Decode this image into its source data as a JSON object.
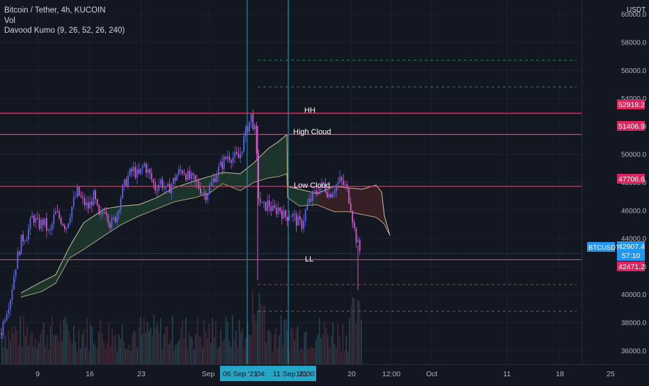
{
  "colors": {
    "background": "#131722",
    "grid": "#1e222d",
    "text": "#d1d4dc",
    "up": "#5b66e8",
    "down": "#d55ac8",
    "level": "#f23a6a",
    "cursor": "#26a6c8",
    "last_price": "#2196f3",
    "dashed_green": "#2e7d5b",
    "dashed_red": "#b03a4a",
    "cloud_green": "#1e3a2e",
    "cloud_red": "#3a1e26",
    "span_a": "#c8c59a",
    "span_b": "#b3a07d"
  },
  "legend": {
    "symbol": "Bitcoin / Tether, 4h, KUCOIN",
    "vol": "Vol",
    "indicator": "Davood Kumo (9, 26, 52, 26, 240)"
  },
  "price_axis": {
    "currency": "USDT",
    "ticks": [
      "60000.0",
      "58000.0",
      "56000.0",
      "54000.0",
      "52000.0",
      "50000.0",
      "48000.0",
      "46000.0",
      "44000.0",
      "42000.0",
      "40000.0",
      "38000.0",
      "36000.0"
    ]
  },
  "time_axis": {
    "ticks": [
      "9",
      "16",
      "23",
      "Sep",
      "20",
      "12:00",
      "Oct",
      "11",
      "18",
      "25"
    ],
    "cursor_label_1": "06 Sep '21",
    "cursor_label_2": "04:",
    "cursor_label_3": "11 Sep '21",
    "cursor_label_4": "16:00"
  },
  "price_labels": {
    "hh_level": "52918.2",
    "high_cloud_level": "51406.9",
    "low_cloud_level": "47706.6",
    "last_price": "42907.4",
    "countdown": "57:10",
    "ll_level": "42471.2",
    "symbol_tag": "BTCUSDT"
  },
  "annotations": {
    "hh": "HH",
    "high_cloud": "High Cloud",
    "low_cloud": "Low Cloud",
    "ll": "LL"
  },
  "chart_data": {
    "type": "candlestick",
    "symbol": "BTCUSDT",
    "exchange": "KUCOIN",
    "interval": "4h",
    "ylim": [
      35000,
      61000
    ],
    "horizontal_levels": [
      52918.2,
      51406.9,
      47706.6,
      42471.2
    ],
    "dashed_levels": [
      56700,
      54800,
      40700,
      38800
    ],
    "last_price": 42907.4,
    "close_path": [
      [
        0,
        37200
      ],
      [
        6,
        38500
      ],
      [
        14,
        39800
      ],
      [
        22,
        42200
      ],
      [
        30,
        43900
      ],
      [
        38,
        44300
      ],
      [
        46,
        45600
      ],
      [
        54,
        44900
      ],
      [
        62,
        45200
      ],
      [
        70,
        44200
      ],
      [
        78,
        45800
      ],
      [
        86,
        45400
      ],
      [
        94,
        44800
      ],
      [
        102,
        46200
      ],
      [
        110,
        47300
      ],
      [
        118,
        46600
      ],
      [
        126,
        46200
      ],
      [
        134,
        47000
      ],
      [
        142,
        45300
      ],
      [
        150,
        46300
      ],
      [
        158,
        44900
      ],
      [
        166,
        45600
      ],
      [
        174,
        47300
      ],
      [
        182,
        48300
      ],
      [
        190,
        48900
      ],
      [
        198,
        48400
      ],
      [
        206,
        49300
      ],
      [
        214,
        48500
      ],
      [
        222,
        47600
      ],
      [
        230,
        48100
      ],
      [
        238,
        47300
      ],
      [
        246,
        47900
      ],
      [
        254,
        48600
      ],
      [
        262,
        48900
      ],
      [
        270,
        48300
      ],
      [
        278,
        48100
      ],
      [
        286,
        47600
      ],
      [
        294,
        47100
      ],
      [
        302,
        47800
      ],
      [
        310,
        48700
      ],
      [
        318,
        49300
      ],
      [
        326,
        49900
      ],
      [
        334,
        49800
      ],
      [
        342,
        49700
      ],
      [
        348,
        50800
      ],
      [
        354,
        51900
      ],
      [
        360,
        52700
      ],
      [
        366,
        51400
      ],
      [
        370,
        47100
      ],
      [
        376,
        46100
      ],
      [
        384,
        46500
      ],
      [
        392,
        45900
      ],
      [
        400,
        46200
      ],
      [
        408,
        45500
      ],
      [
        416,
        45800
      ],
      [
        424,
        45300
      ],
      [
        432,
        44900
      ],
      [
        440,
        46300
      ],
      [
        448,
        47000
      ],
      [
        456,
        47500
      ],
      [
        464,
        47800
      ],
      [
        472,
        47100
      ],
      [
        480,
        47700
      ],
      [
        488,
        48100
      ],
      [
        496,
        47600
      ],
      [
        502,
        46600
      ],
      [
        508,
        44600
      ],
      [
        514,
        43300
      ],
      [
        518,
        42900
      ]
    ],
    "kumo_span_a": [
      [
        30,
        40100
      ],
      [
        60,
        40900
      ],
      [
        80,
        41400
      ],
      [
        100,
        43400
      ],
      [
        120,
        45100
      ],
      [
        150,
        46100
      ],
      [
        175,
        46300
      ],
      [
        200,
        46400
      ],
      [
        225,
        46900
      ],
      [
        250,
        47600
      ],
      [
        280,
        48100
      ],
      [
        300,
        48400
      ],
      [
        320,
        48700
      ],
      [
        345,
        48600
      ],
      [
        365,
        49400
      ],
      [
        385,
        50400
      ],
      [
        400,
        50900
      ],
      [
        412,
        51400
      ],
      [
        413,
        47700
      ],
      [
        430,
        47500
      ],
      [
        455,
        47200
      ],
      [
        480,
        47700
      ],
      [
        500,
        47600
      ],
      [
        520,
        47500
      ],
      [
        540,
        47800
      ],
      [
        548,
        47300
      ],
      [
        552,
        45600
      ],
      [
        560,
        44200
      ]
    ],
    "kumo_span_b": [
      [
        30,
        39800
      ],
      [
        60,
        40200
      ],
      [
        80,
        40800
      ],
      [
        100,
        42600
      ],
      [
        120,
        43200
      ],
      [
        150,
        44200
      ],
      [
        175,
        45000
      ],
      [
        200,
        45600
      ],
      [
        225,
        46100
      ],
      [
        250,
        46600
      ],
      [
        280,
        46900
      ],
      [
        300,
        47200
      ],
      [
        320,
        47900
      ],
      [
        345,
        47400
      ],
      [
        365,
        48000
      ],
      [
        385,
        48300
      ],
      [
        400,
        48400
      ],
      [
        412,
        48600
      ],
      [
        413,
        46900
      ],
      [
        430,
        46300
      ],
      [
        455,
        46400
      ],
      [
        480,
        45900
      ],
      [
        500,
        45900
      ],
      [
        520,
        45700
      ],
      [
        540,
        45500
      ],
      [
        548,
        45200
      ],
      [
        552,
        45000
      ],
      [
        560,
        44200
      ]
    ],
    "volume_note": "volume histogram bars along bottom, colored by candle direction"
  }
}
